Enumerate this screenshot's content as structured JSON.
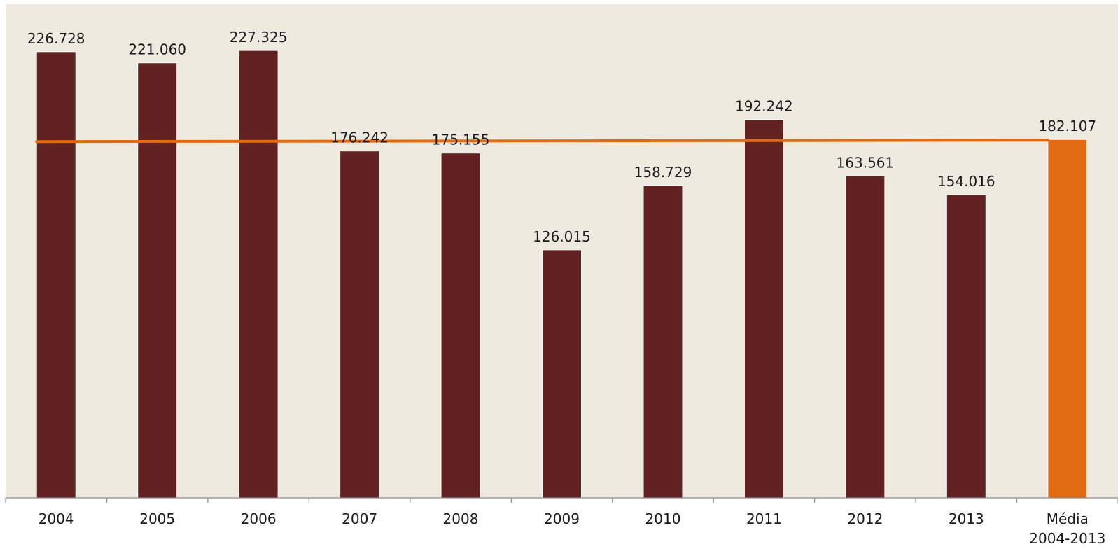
{
  "chart_data": {
    "type": "bar",
    "categories": [
      "2004",
      "2005",
      "2006",
      "2007",
      "2008",
      "2009",
      "2010",
      "2011",
      "2012",
      "2013",
      "Média\n2004-2013"
    ],
    "values": [
      226728,
      221060,
      227325,
      176242,
      175155,
      126015,
      158729,
      192242,
      163561,
      154016,
      182107
    ],
    "value_labels": [
      "226.728",
      "221.060",
      "227.325",
      "176.242",
      "175.155",
      "126.015",
      "158.729",
      "192.242",
      "163.561",
      "154.016",
      "182.107"
    ],
    "average_line": 182107,
    "ylim": [
      0,
      250000
    ],
    "grid": false,
    "legend": "none",
    "title": "",
    "xlabel": "",
    "ylabel": ""
  },
  "colors": {
    "background": "#EEEAE0",
    "bar": "#622222",
    "average_bar": "#E06B10",
    "average_line": "#E06B10"
  }
}
